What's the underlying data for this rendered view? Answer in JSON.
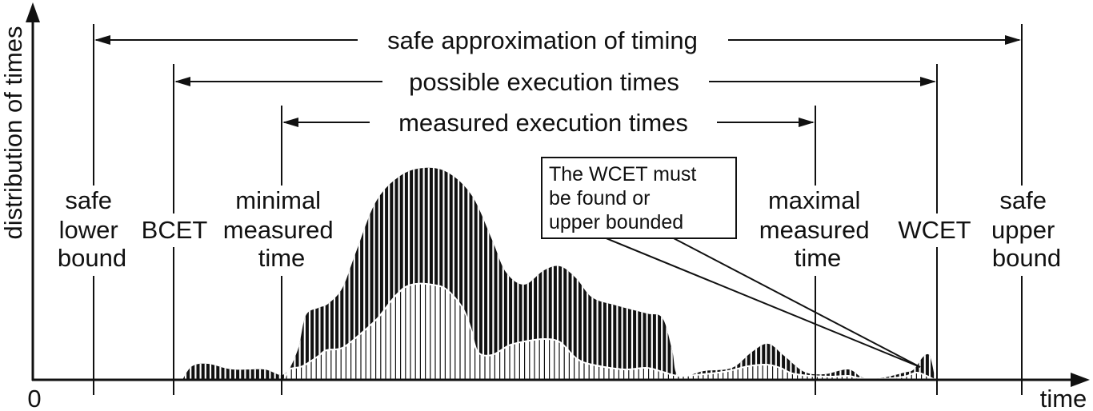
{
  "axes": {
    "y_label": "distribution of times",
    "x_label": "time",
    "origin_label": "0"
  },
  "ranges": {
    "safe": "safe approximation of timing",
    "possible": "possible execution times",
    "measured": "measured execution times"
  },
  "markers": {
    "safe_lower": [
      "safe",
      "lower",
      "bound"
    ],
    "bcet": [
      "BCET"
    ],
    "min_measured": [
      "minimal",
      "measured",
      "time"
    ],
    "max_measured": [
      "maximal",
      "measured",
      "time"
    ],
    "wcet": [
      "WCET"
    ],
    "safe_upper": [
      "safe",
      "upper",
      "bound"
    ]
  },
  "callout": [
    "The WCET must",
    "be found or",
    "upper bounded"
  ],
  "colors": {
    "ink": "#111111",
    "background": "#ffffff"
  }
}
